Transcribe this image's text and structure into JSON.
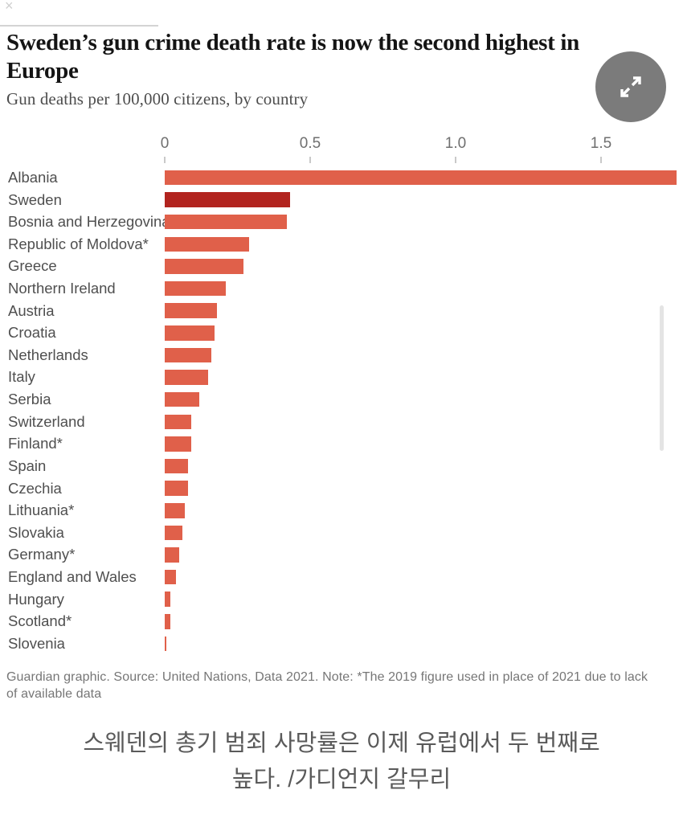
{
  "page": {
    "close_label": "×"
  },
  "header": {
    "title_line1": "Sweden’s gun crime death rate is now the second highest in",
    "title_line2": "Europe",
    "subtitle": "Gun deaths per 100,000 citizens, by country"
  },
  "chart_data": {
    "type": "bar",
    "orientation": "horizontal",
    "title": "Sweden’s gun crime death rate is now the second highest in Europe",
    "subtitle": "Gun deaths per 100,000 citizens, by country",
    "xlim": [
      0,
      1.78
    ],
    "x_ticks": [
      0,
      0.5,
      1.0,
      1.5
    ],
    "x_tick_labels": [
      "0",
      "0.5",
      "1.0",
      "1.5"
    ],
    "grid": false,
    "legend": "none",
    "categories": [
      "Albania",
      "Sweden",
      "Bosnia and Herzegovina",
      "Republic of Moldova*",
      "Greece",
      "Northern Ireland",
      "Austria",
      "Croatia",
      "Netherlands",
      "Italy",
      "Serbia",
      "Switzerland",
      "Finland*",
      "Spain",
      "Czechia",
      "Lithuania*",
      "Slovakia",
      "Germany*",
      "England and Wales",
      "Hungary",
      "Scotland*",
      "Slovenia"
    ],
    "values": [
      1.76,
      0.43,
      0.42,
      0.29,
      0.27,
      0.21,
      0.18,
      0.17,
      0.16,
      0.15,
      0.12,
      0.09,
      0.09,
      0.08,
      0.08,
      0.07,
      0.06,
      0.05,
      0.04,
      0.02,
      0.02,
      0.005
    ],
    "highlight_index": 1,
    "bar_color": "#e0604a",
    "highlight_color": "#b2241f"
  },
  "footer": {
    "source_note": "Guardian graphic. Source: United Nations, Data 2021. Note: *The 2019 figure used in place of 2021 due to lack of available data"
  },
  "caption": {
    "line1": "스웨덴의 총기 범죄 사망률은 이제 유럽에서 두 번째로",
    "line2": "높다. /가디언지 갈무리"
  }
}
